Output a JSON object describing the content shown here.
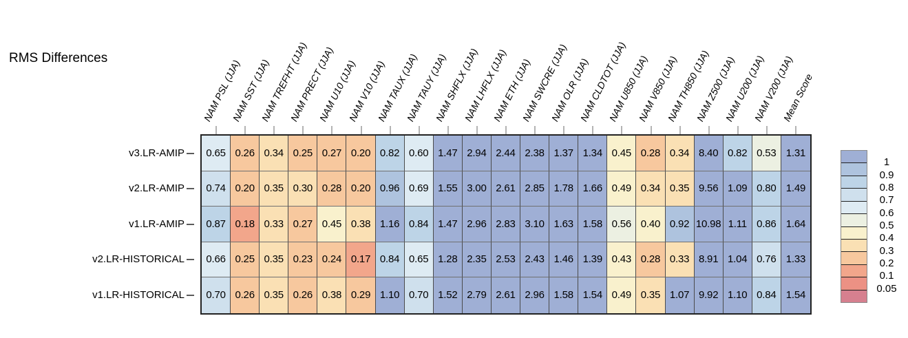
{
  "title": "RMS Differences",
  "chart_data": {
    "type": "heatmap",
    "title": "RMS Differences",
    "columns": [
      "NAM PSL (JJA)",
      "NAM SST (JJA)",
      "NAM TREFHT (JJA)",
      "NAM PRECT (JJA)",
      "NAM U10 (JJA)",
      "NAM V10 (JJA)",
      "NAM TAUX (JJA)",
      "NAM TAUY (JJA)",
      "NAM SHFLX (JJA)",
      "NAM LHFLX (JJA)",
      "NAM ETH (JJA)",
      "NAM SWCRE (JJA)",
      "NAM OLR (JJA)",
      "NAM CLDTOT (JJA)",
      "NAM U850 (JJA)",
      "NAM V850 (JJA)",
      "NAM TH850 (JJA)",
      "NAM Z500 (JJA)",
      "NAM U200 (JJA)",
      "NAM V200 (JJA)",
      "Mean Score"
    ],
    "rows": [
      "v3.LR-AMIP",
      "v2.LR-AMIP",
      "v1.LR-AMIP",
      "v2.LR-HISTORICAL",
      "v1.LR-HISTORICAL"
    ],
    "values": [
      [
        0.65,
        0.26,
        0.34,
        0.25,
        0.27,
        0.2,
        0.82,
        0.6,
        1.47,
        2.94,
        2.44,
        2.38,
        1.37,
        1.34,
        0.45,
        0.28,
        0.34,
        8.4,
        0.82,
        0.53,
        1.31
      ],
      [
        0.74,
        0.2,
        0.35,
        0.3,
        0.28,
        0.2,
        0.96,
        0.69,
        1.55,
        3.0,
        2.61,
        2.85,
        1.78,
        1.66,
        0.49,
        0.34,
        0.35,
        9.56,
        1.09,
        0.8,
        1.49
      ],
      [
        0.87,
        0.18,
        0.33,
        0.27,
        0.45,
        0.38,
        1.16,
        0.84,
        1.47,
        2.96,
        2.83,
        3.1,
        1.63,
        1.58,
        0.56,
        0.4,
        0.92,
        10.98,
        1.11,
        0.86,
        1.64
      ],
      [
        0.66,
        0.25,
        0.35,
        0.23,
        0.24,
        0.17,
        0.84,
        0.65,
        1.28,
        2.35,
        2.53,
        2.43,
        1.46,
        1.39,
        0.43,
        0.28,
        0.33,
        8.91,
        1.04,
        0.76,
        1.33
      ],
      [
        0.7,
        0.26,
        0.35,
        0.26,
        0.38,
        0.29,
        1.1,
        0.7,
        1.52,
        2.79,
        2.61,
        2.96,
        1.58,
        1.54,
        0.49,
        0.35,
        1.07,
        9.92,
        1.1,
        0.84,
        1.54
      ]
    ],
    "value_format": "two_decimals",
    "colorbar": {
      "position": "right",
      "tick_labels": [
        "1",
        "0.9",
        "0.8",
        "0.7",
        "0.6",
        "0.5",
        "0.4",
        "0.3",
        "0.2",
        "0.1",
        "0.05"
      ],
      "thresholds": [
        1,
        0.9,
        0.8,
        0.7,
        0.6,
        0.5,
        0.4,
        0.3,
        0.2,
        0.1,
        0.05
      ],
      "colors": [
        "#9fafd5",
        "#aec3de",
        "#bdd4e7",
        "#cfe0ed",
        "#deebf3",
        "#ecf0e2",
        "#f9f1cd",
        "#fae0b4",
        "#f7c89e",
        "#f2a68b",
        "#ec9184",
        "#d6808f"
      ]
    },
    "layout_hints": {
      "column_label_rotation_deg": -63,
      "grid": "cell-borders",
      "legend_position": "right"
    }
  }
}
